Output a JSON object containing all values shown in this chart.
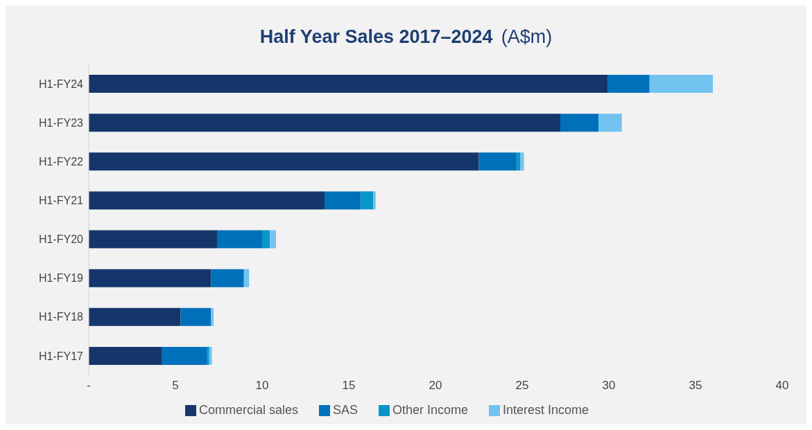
{
  "chart_data": {
    "type": "bar",
    "title": "Half Year Sales 2017–2024",
    "subtitle": "(A$m)",
    "orientation": "horizontal",
    "stacked": true,
    "categories": [
      "H1-FY24",
      "H1-FY23",
      "H1-FY22",
      "H1-FY21",
      "H1-FY20",
      "H1-FY19",
      "H1-FY18",
      "H1-FY17"
    ],
    "series": [
      {
        "name": "Commercial sales",
        "color": "#14366b",
        "values": [
          29.95,
          27.2,
          22.5,
          13.6,
          7.4,
          7.05,
          5.3,
          4.2
        ]
      },
      {
        "name": "SAS",
        "color": "#0070ba",
        "values": [
          2.4,
          2.2,
          2.2,
          2.1,
          2.6,
          1.9,
          1.75,
          2.6
        ]
      },
      {
        "name": "Other Income",
        "color": "#0896c8",
        "values": [
          0,
          0,
          0.2,
          0.7,
          0.45,
          0,
          0,
          0.15
        ]
      },
      {
        "name": "Interest Income",
        "color": "#73c3f0",
        "values": [
          3.65,
          1.35,
          0.2,
          0.15,
          0.35,
          0.3,
          0.15,
          0.15
        ]
      }
    ],
    "xlim": [
      0,
      40
    ],
    "xticks": [
      {
        "value": 0,
        "label": "-"
      },
      5,
      10,
      15,
      20,
      25,
      30,
      35,
      40
    ],
    "grid": false,
    "legend": "bottom"
  }
}
